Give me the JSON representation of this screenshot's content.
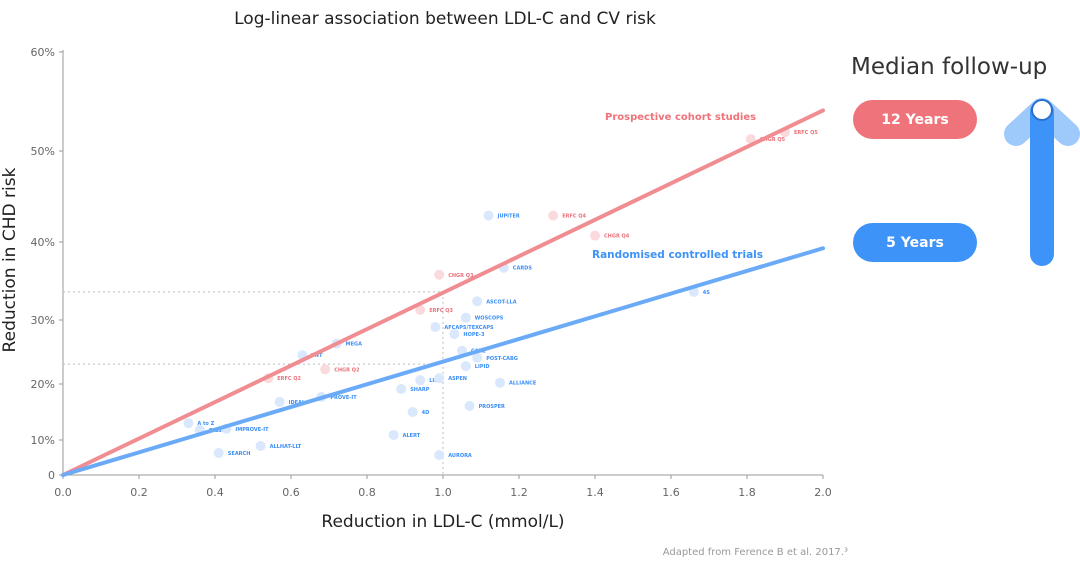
{
  "chart_data": {
    "type": "scatter",
    "title": "Log-linear association between LDL-C and CV risk",
    "xlabel": "Reduction in LDL-C (mmol/L)",
    "ylabel": "Reduction in CHD risk",
    "xlim": [
      0,
      2.0
    ],
    "ylim": [
      0,
      60
    ],
    "x_ticks": [
      "0.0",
      "0.2",
      "0.4",
      "0.6",
      "0.8",
      "1.0",
      "1.2",
      "1.4",
      "1.6",
      "1.8",
      "2.0"
    ],
    "y_ticks": [
      {
        "v": 0,
        "label": "0"
      },
      {
        "v": 10,
        "label": "10%"
      },
      {
        "v": 20,
        "label": "20%"
      },
      {
        "v": 30,
        "label": "30%"
      },
      {
        "v": 40,
        "label": "40%"
      },
      {
        "v": 50,
        "label": "50%"
      },
      {
        "v": 60,
        "label": "60%"
      }
    ],
    "y_scale": "log-linear",
    "series": [
      {
        "name": "Prospective cohort studies",
        "color": "#f08d93",
        "point_color": "#fbdadd",
        "line": [
          [
            0,
            0
          ],
          [
            2.0,
            54.1
          ]
        ],
        "points": [
          {
            "label": "ERFC Q2",
            "x": 0.54,
            "y": 20.9
          },
          {
            "label": "CHGR Q2",
            "x": 0.69,
            "y": 22.3
          },
          {
            "label": "ERFC Q3",
            "x": 0.94,
            "y": 31.3
          },
          {
            "label": "CHGR Q3",
            "x": 0.99,
            "y": 35.8
          },
          {
            "label": "ERFC Q4",
            "x": 1.29,
            "y": 42.9
          },
          {
            "label": "CHGR Q4",
            "x": 1.4,
            "y": 40.7
          },
          {
            "label": "CHGR Q5",
            "x": 1.81,
            "y": 51.2
          },
          {
            "label": "ERFC Q5",
            "x": 1.9,
            "y": 51.9
          }
        ]
      },
      {
        "name": "Randomised controlled trials",
        "color": "#6aaaf7",
        "point_color": "#d9e8fc",
        "line": [
          [
            0,
            0
          ],
          [
            2.0,
            39.2
          ]
        ],
        "points": [
          {
            "label": "4S",
            "x": 1.66,
            "y": 33.6
          },
          {
            "label": "JUPITER",
            "x": 1.12,
            "y": 42.9
          },
          {
            "label": "CARDS",
            "x": 1.16,
            "y": 36.7
          },
          {
            "label": "ASCOT-LLA",
            "x": 1.09,
            "y": 32.4
          },
          {
            "label": "WOSCOPS",
            "x": 1.06,
            "y": 30.3
          },
          {
            "label": "AFCAPS/TEXCAPS",
            "x": 0.98,
            "y": 28.9
          },
          {
            "label": "HOPE-3",
            "x": 1.03,
            "y": 27.8
          },
          {
            "label": "TNT",
            "x": 0.63,
            "y": 24.5
          },
          {
            "label": "MEGA",
            "x": 0.72,
            "y": 26.3
          },
          {
            "label": "CARE",
            "x": 1.05,
            "y": 25.2
          },
          {
            "label": "POST-CABG",
            "x": 1.09,
            "y": 24.1
          },
          {
            "label": "LIPID",
            "x": 1.06,
            "y": 22.8
          },
          {
            "label": "LIPS",
            "x": 0.94,
            "y": 20.6
          },
          {
            "label": "ASPEN",
            "x": 0.99,
            "y": 20.9
          },
          {
            "label": "ALLIANCE",
            "x": 1.15,
            "y": 20.2
          },
          {
            "label": "SHARP",
            "x": 0.89,
            "y": 19.1
          },
          {
            "label": "IDEAL",
            "x": 0.57,
            "y": 16.8
          },
          {
            "label": "PROVE-IT",
            "x": 0.68,
            "y": 17.7
          },
          {
            "label": "PROSPER",
            "x": 1.07,
            "y": 16.1
          },
          {
            "label": "4D",
            "x": 0.92,
            "y": 15.0
          },
          {
            "label": "ALERT",
            "x": 0.87,
            "y": 10.9
          },
          {
            "label": "AURORA",
            "x": 0.99,
            "y": 5.7
          },
          {
            "label": "A to Z",
            "x": 0.33,
            "y": 13.0
          },
          {
            "label": "GISSI-P",
            "x": 0.36,
            "y": 11.8
          },
          {
            "label": "IMPROVE-IT",
            "x": 0.43,
            "y": 12.0
          },
          {
            "label": "ALLHAT-LLT",
            "x": 0.52,
            "y": 8.3
          },
          {
            "label": "SEARCH",
            "x": 0.41,
            "y": 6.3
          }
        ]
      }
    ],
    "reference_lines": {
      "x": 1.0,
      "y": [
        33.6,
        23.1
      ]
    },
    "annotations": [
      "Prospective cohort studies",
      "Randomised controlled trials"
    ]
  },
  "side": {
    "title": "Median follow-up",
    "cohort_label": "12 Years",
    "rct_label": "5 Years"
  },
  "footer": "Adapted from Ference B et al. 2017.³"
}
